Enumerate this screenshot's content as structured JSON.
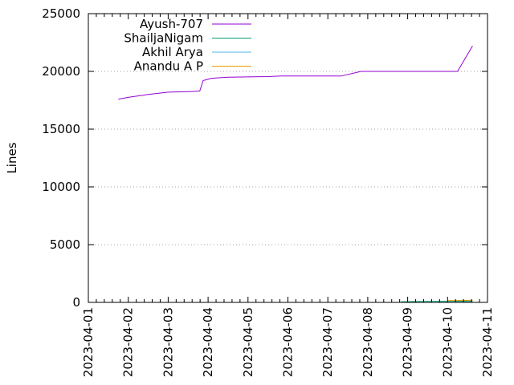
{
  "chart_data": {
    "type": "line",
    "title": "",
    "xlabel": "",
    "ylabel": "Lines",
    "xlim": [
      "2023-04-01",
      "2023-04-11"
    ],
    "ylim": [
      0,
      25000
    ],
    "grid": "horizontal dotted",
    "legend_position": "top-left",
    "x_tick_labels": [
      "2023-04-01",
      "2023-04-02",
      "2023-04-03",
      "2023-04-04",
      "2023-04-05",
      "2023-04-06",
      "2023-04-07",
      "2023-04-08",
      "2023-04-09",
      "2023-04-10",
      "2023-04-11"
    ],
    "y_tick_labels": [
      "0",
      "5000",
      "10000",
      "15000",
      "20000",
      "25000"
    ],
    "series": [
      {
        "name": "Ayush-707",
        "color": "#9400d3",
        "points": [
          [
            "2023-04-01 18:00",
            17600
          ],
          [
            "2023-04-02 00:00",
            17750
          ],
          [
            "2023-04-02 12:00",
            18000
          ],
          [
            "2023-04-03 00:00",
            18200
          ],
          [
            "2023-04-03 12:00",
            18250
          ],
          [
            "2023-04-03 19:00",
            18300
          ],
          [
            "2023-04-03 21:00",
            19200
          ],
          [
            "2023-04-04 02:00",
            19400
          ],
          [
            "2023-04-04 12:00",
            19500
          ],
          [
            "2023-04-05 12:00",
            19550
          ],
          [
            "2023-04-05 20:00",
            19600
          ],
          [
            "2023-04-07 08:00",
            19600
          ],
          [
            "2023-04-07 20:00",
            20000
          ],
          [
            "2023-04-10 06:00",
            20000
          ],
          [
            "2023-04-10 15:00",
            22200
          ]
        ]
      },
      {
        "name": "ShailjaNigam",
        "color": "#009e73",
        "points": [
          [
            "2023-04-08 20:00",
            50
          ],
          [
            "2023-04-09 12:00",
            80
          ],
          [
            "2023-04-10 00:00",
            100
          ],
          [
            "2023-04-10 15:00",
            110
          ]
        ]
      },
      {
        "name": "Akhil Arya",
        "color": "#56b4e9",
        "points": [
          [
            "2023-04-09 18:00",
            20
          ],
          [
            "2023-04-10 15:00",
            30
          ]
        ]
      },
      {
        "name": "Anandu A P",
        "color": "#e69f00",
        "points": [
          [
            "2023-04-10 00:00",
            150
          ],
          [
            "2023-04-10 15:00",
            180
          ]
        ]
      }
    ]
  }
}
